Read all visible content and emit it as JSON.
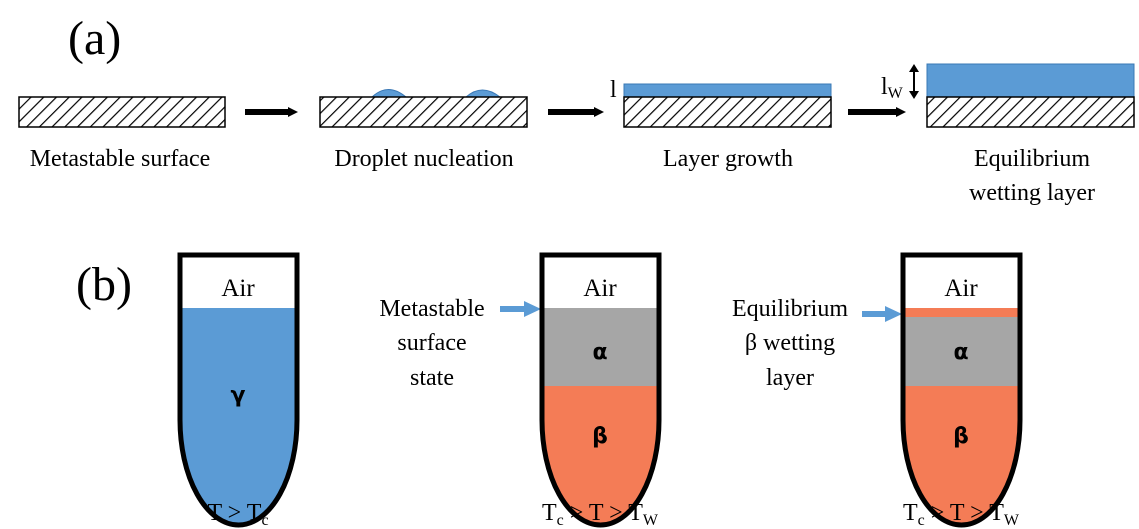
{
  "colors": {
    "liquid_blue": "#5b9bd5",
    "beta_orange": "#f47c56",
    "alpha_gray": "#a6a6a6",
    "outline": "#000000",
    "pointer_blue": "#5b9bd5"
  },
  "panel_a": {
    "label": "(a)",
    "stages": [
      {
        "label": "Metastable surface"
      },
      {
        "label": "Droplet nucleation"
      },
      {
        "label": "Layer growth",
        "thickness_label": "l"
      },
      {
        "label_line1": "Equilibrium",
        "label_line2": "wetting layer",
        "thickness_label": "l",
        "thickness_subscript": "W"
      }
    ]
  },
  "panel_b": {
    "label": "(b)",
    "tubes": [
      {
        "air_label": "Air",
        "liquid_label": "γ",
        "cond_a": "T > T",
        "cond_a_sub": "c"
      },
      {
        "air_label": "Air",
        "upper_label": "α",
        "lower_label": "β",
        "cond_a": "T",
        "cond_a_sub": "c",
        "cond_b": " > T > T",
        "cond_b_sub": "W"
      },
      {
        "air_label": "Air",
        "upper_label": "α",
        "lower_label": "β",
        "cond_a": "T",
        "cond_a_sub": "c",
        "cond_b": " > T > T",
        "cond_b_sub": "W"
      }
    ],
    "annotations": [
      {
        "lines": [
          "Metastable",
          "surface",
          "state"
        ]
      },
      {
        "lines": [
          "Equilibrium",
          "β wetting",
          "layer"
        ]
      }
    ]
  }
}
